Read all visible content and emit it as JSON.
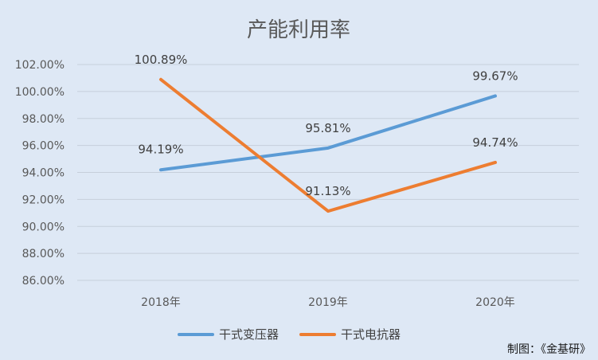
{
  "chart_data": {
    "type": "line",
    "title": "产能利用率",
    "categories": [
      "2018年",
      "2019年",
      "2020年"
    ],
    "series": [
      {
        "name": "干式变压器",
        "color": "#5b9bd5",
        "values": [
          94.19,
          95.81,
          99.67
        ],
        "labels": [
          "94.19%",
          "95.81%",
          "99.67%"
        ]
      },
      {
        "name": "干式电抗器",
        "color": "#ed7d31",
        "values": [
          100.89,
          91.13,
          94.74
        ],
        "labels": [
          "100.89%",
          "91.13%",
          "94.74%"
        ]
      }
    ],
    "y_ticks": [
      "86.00%",
      "88.00%",
      "90.00%",
      "92.00%",
      "94.00%",
      "96.00%",
      "98.00%",
      "100.00%",
      "102.00%"
    ],
    "ylim": [
      86,
      102
    ],
    "grid": true,
    "legend_position": "bottom"
  },
  "credit": "制图：《金基研》"
}
